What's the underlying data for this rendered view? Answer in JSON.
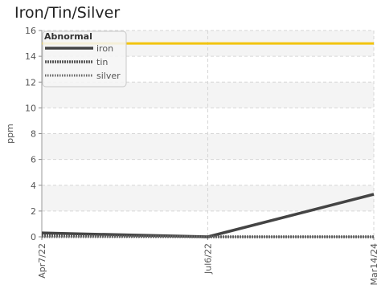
{
  "chart_data": {
    "type": "line",
    "title": "Iron/Tin/Silver",
    "ylabel": "ppm",
    "xlabel": "",
    "categories": [
      "Apr7/22",
      "Jul6/22",
      "Mar14/24"
    ],
    "ylim": [
      0,
      16
    ],
    "yticks": [
      0,
      2,
      4,
      6,
      8,
      10,
      12,
      14,
      16
    ],
    "grid": true,
    "legend_placement": "top-left",
    "legend_title": "Abnormal",
    "threshold": {
      "label": "Abnormal",
      "value": 15,
      "color": "#f2c40f"
    },
    "series": [
      {
        "name": "iron",
        "values": [
          0.3,
          0,
          3.3
        ],
        "color": "#444444",
        "style": "solid"
      },
      {
        "name": "tin",
        "values": [
          0.1,
          0,
          0
        ],
        "color": "#555555",
        "style": "dense"
      },
      {
        "name": "silver",
        "values": [
          0,
          0,
          0
        ],
        "color": "#666666",
        "style": "dotted"
      }
    ]
  }
}
